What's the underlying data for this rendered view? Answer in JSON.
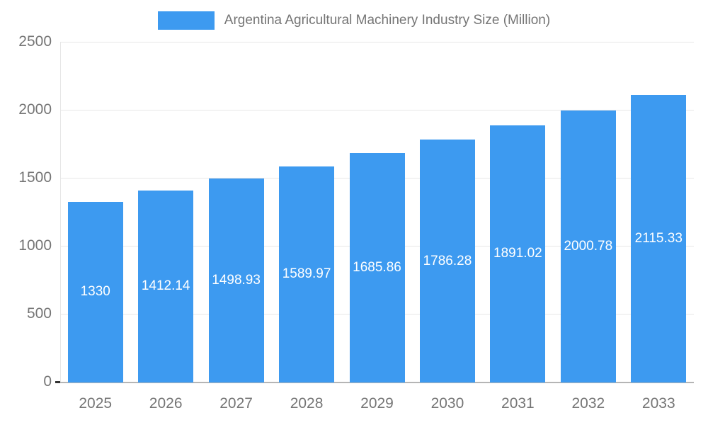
{
  "chart": {
    "colors": {
      "bar": "#3d9af0",
      "bar_label": "#ffffff",
      "title_text": "#757575",
      "axis_text": "#757575",
      "grid": "#e6e6e6",
      "baseline": "#b5b5b5",
      "zero_tick": "#333333",
      "background": "#ffffff"
    }
  },
  "chart_data": {
    "type": "bar",
    "title": "Argentina Agricultural Machinery Industry Size (Million)",
    "legend_position": "top",
    "grid": true,
    "categories": [
      "2025",
      "2026",
      "2027",
      "2028",
      "2029",
      "2030",
      "2031",
      "2032",
      "2033"
    ],
    "values": [
      1330,
      1412.14,
      1498.93,
      1589.97,
      1685.86,
      1786.28,
      1891.02,
      2000.78,
      2115.33
    ],
    "bar_labels": [
      "1330",
      "1412.14",
      "1498.93",
      "1589.97",
      "1685.86",
      "1786.28",
      "1891.02",
      "2000.78",
      "2115.33"
    ],
    "xlabel": "",
    "ylabel": "",
    "ylim": [
      0,
      2500
    ],
    "yticks": [
      0,
      500,
      1000,
      1500,
      2000,
      2500
    ],
    "ytick_labels": [
      "0",
      "500",
      "1000",
      "1500",
      "2000",
      "2500"
    ]
  }
}
